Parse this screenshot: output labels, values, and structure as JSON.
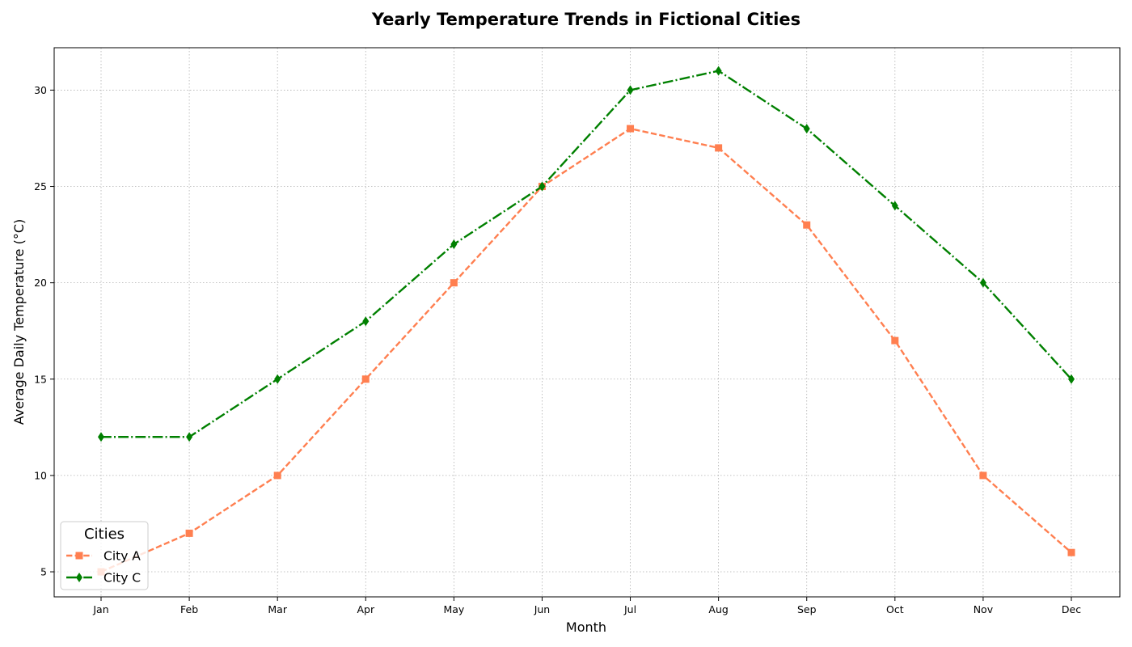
{
  "chart_data": {
    "type": "line",
    "title": "Yearly Temperature Trends in Fictional Cities",
    "xlabel": "Month",
    "ylabel": "Average Daily Temperature (°C)",
    "categories": [
      "Jan",
      "Feb",
      "Mar",
      "Apr",
      "May",
      "Jun",
      "Jul",
      "Aug",
      "Sep",
      "Oct",
      "Nov",
      "Dec"
    ],
    "ylim": [
      3.7,
      32.2
    ],
    "yticks": [
      5,
      10,
      15,
      20,
      25,
      30
    ],
    "grid": true,
    "legend": {
      "title": "Cities",
      "placement": "lower-left"
    },
    "series": [
      {
        "name": "City A",
        "values": [
          5,
          7,
          10,
          15,
          20,
          25,
          28,
          27,
          23,
          17,
          10,
          6
        ],
        "color": "#ff7f50",
        "line_style": "dashed",
        "marker": "square"
      },
      {
        "name": "City C",
        "values": [
          12,
          12,
          15,
          18,
          22,
          25,
          30,
          31,
          28,
          24,
          20,
          15
        ],
        "color": "#008000",
        "line_style": "dash-dot",
        "marker": "diamond"
      }
    ]
  }
}
